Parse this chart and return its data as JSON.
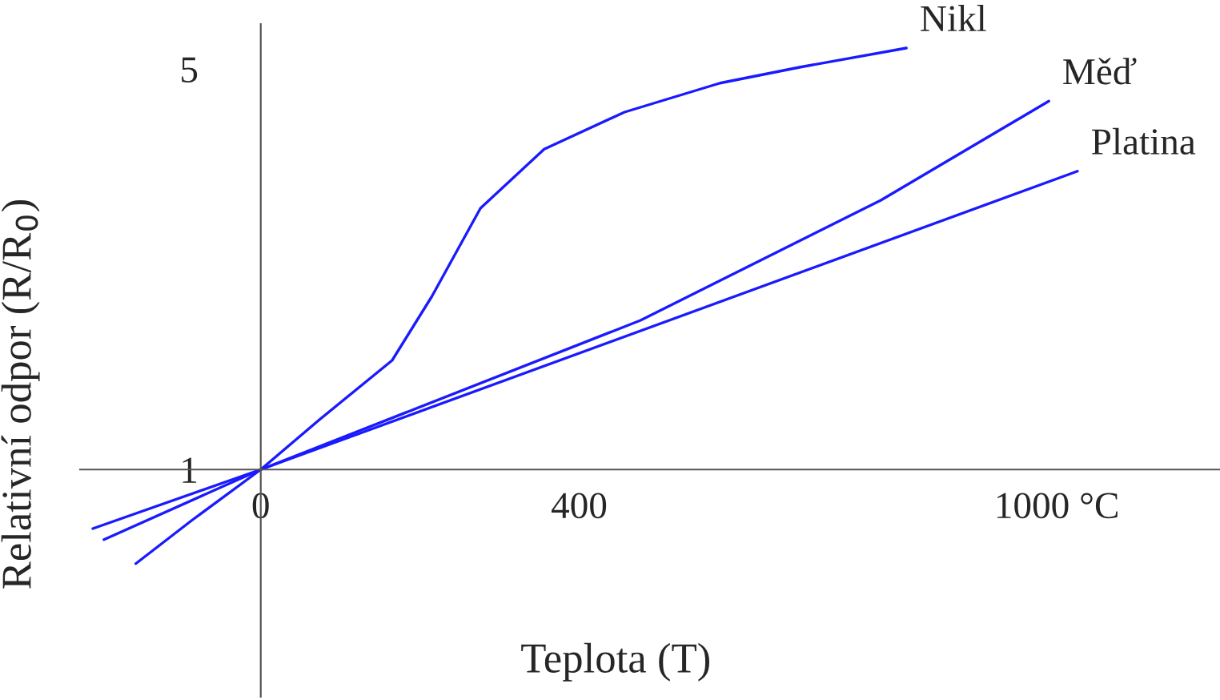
{
  "chart_data": {
    "type": "line",
    "xlabel": "Teplota (T)",
    "ylabel": "Relativní odpor (R/R$_{0}$)",
    "xlim": [
      -227,
      1205
    ],
    "ylim": [
      -1.27,
      5.45
    ],
    "xticks": [
      0,
      400,
      {
        "value": 1000,
        "label": "1000 °C"
      }
    ],
    "yticks": [
      1,
      5
    ],
    "grid": false,
    "legend": false,
    "marker": "none",
    "line_style": "solid",
    "series": [
      {
        "name": "Nikl",
        "color": "#1a1aff",
        "x": [
          -157,
          -87,
          0,
          74,
          165,
          215,
          276,
          356,
          457,
          577,
          678,
          811
        ],
        "values": [
          0.06,
          0.49,
          1,
          1.5,
          2.09,
          2.73,
          3.61,
          4.2,
          4.57,
          4.86,
          5.02,
          5.21
        ]
      },
      {
        "name": "Měď",
        "color": "#1a1aff",
        "x": [
          -197,
          0,
          477,
          779,
          990
        ],
        "values": [
          0.3,
          1,
          2.49,
          3.69,
          4.68
        ]
      },
      {
        "name": "Platina",
        "color": "#1a1aff",
        "x": [
          -211,
          0,
          1026
        ],
        "values": [
          0.41,
          1,
          3.98
        ]
      }
    ]
  }
}
